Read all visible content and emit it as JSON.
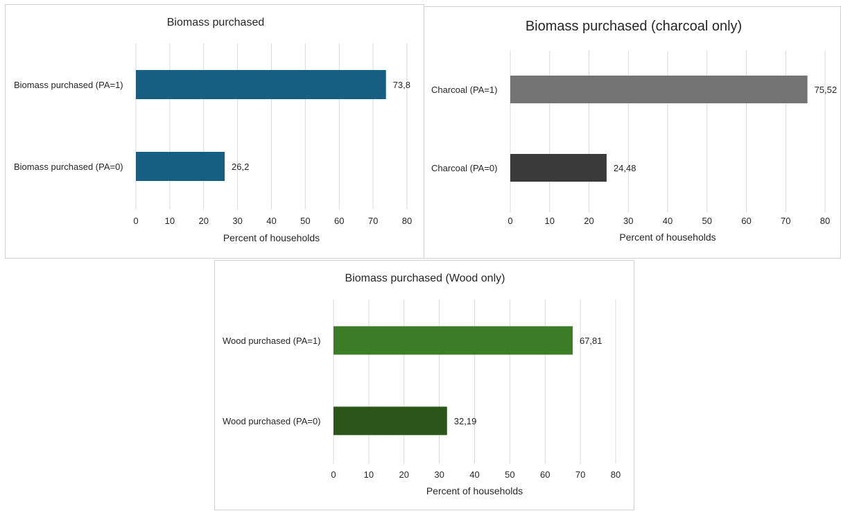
{
  "chart_data": [
    {
      "type": "bar",
      "orientation": "horizontal",
      "title": "Biomass purchased",
      "categories": [
        "Biomass purchased (PA=1)",
        "Biomass purchased (PA=0)"
      ],
      "values": [
        73.8,
        26.2
      ],
      "value_labels": [
        "73,8",
        "26,2"
      ],
      "colors": [
        "#175e83",
        "#175e83"
      ],
      "xlabel": "Percent of households",
      "xlim": [
        0,
        80
      ],
      "x_ticks": [
        "0",
        "10",
        "20",
        "30",
        "40",
        "50",
        "60",
        "70",
        "80"
      ],
      "grid": true
    },
    {
      "type": "bar",
      "orientation": "horizontal",
      "title": "Biomass purchased (charcoal only)",
      "categories": [
        "Charcoal (PA=1)",
        "Charcoal (PA=0)"
      ],
      "values": [
        75.52,
        24.48
      ],
      "value_labels": [
        "75,52",
        "24,48"
      ],
      "colors": [
        "#737373",
        "#3a3a3a"
      ],
      "xlabel": "Percent of households",
      "xlim": [
        0,
        80
      ],
      "x_ticks": [
        "0",
        "10",
        "20",
        "30",
        "40",
        "50",
        "60",
        "70",
        "80"
      ],
      "grid": true
    },
    {
      "type": "bar",
      "orientation": "horizontal",
      "title": "Biomass purchased (Wood only)",
      "categories": [
        "Wood purchased (PA=1)",
        "Wood purchased (PA=0)"
      ],
      "values": [
        67.81,
        32.19
      ],
      "value_labels": [
        "67,81",
        "32,19"
      ],
      "colors": [
        "#3a7d24",
        "#2a561a"
      ],
      "xlabel": "Percent of households",
      "xlim": [
        0,
        80
      ],
      "x_ticks": [
        "0",
        "10",
        "20",
        "30",
        "40",
        "50",
        "60",
        "70",
        "80"
      ],
      "grid": true
    }
  ]
}
